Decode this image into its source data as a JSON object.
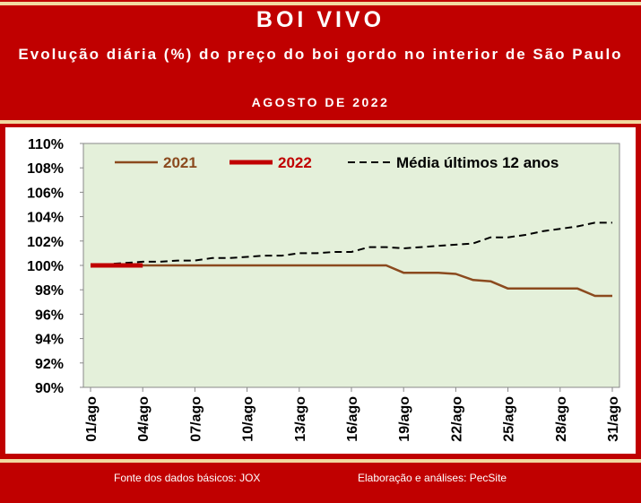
{
  "header": {
    "title": "BOI VIVO",
    "subtitle": "Evolução diária (%) do preço do boi gordo no interior de São Paulo",
    "period": "AGOSTO DE 2022"
  },
  "footer": {
    "source": "Fonte dos dados básicos: JOX",
    "credit": "Elaboração e análises: PecSite"
  },
  "colors": {
    "background": "#c00000",
    "plot_area": "#e4f0da",
    "series_2021": "#8b4a1e",
    "series_2022": "#c00000",
    "series_media": "#000000",
    "stripe": "#f2d9a0"
  },
  "chart_data": {
    "type": "line",
    "ylim": [
      90,
      110
    ],
    "y_ticks": [
      "110%",
      "108%",
      "106%",
      "104%",
      "102%",
      "100%",
      "98%",
      "96%",
      "94%",
      "92%",
      "90%"
    ],
    "y_tick_values": [
      110,
      108,
      106,
      104,
      102,
      100,
      98,
      96,
      94,
      92,
      90
    ],
    "x_tick_labels": [
      "01/ago",
      "04/ago",
      "07/ago",
      "10/ago",
      "13/ago",
      "16/ago",
      "19/ago",
      "22/ago",
      "25/ago",
      "28/ago",
      "31/ago"
    ],
    "x_tick_days": [
      1,
      4,
      7,
      10,
      13,
      16,
      19,
      22,
      25,
      28,
      31
    ],
    "xlim": [
      1,
      31
    ],
    "grid": false,
    "legend_position": "top",
    "series": [
      {
        "name": "2021",
        "style": "solid",
        "x": [
          1,
          2,
          3,
          4,
          5,
          6,
          7,
          8,
          9,
          10,
          11,
          12,
          13,
          14,
          15,
          16,
          17,
          18,
          19,
          20,
          21,
          22,
          23,
          24,
          25,
          26,
          27,
          28,
          29,
          30,
          31
        ],
        "values": [
          100,
          100,
          100,
          100,
          100,
          100,
          100,
          100,
          100,
          100,
          100,
          100,
          100,
          100,
          100,
          100,
          100,
          100,
          99.4,
          99.4,
          99.4,
          99.3,
          98.8,
          98.7,
          98.1,
          98.1,
          98.1,
          98.1,
          98.1,
          97.5,
          97.5
        ]
      },
      {
        "name": "2022",
        "style": "thick",
        "x": [
          1,
          2,
          3,
          4
        ],
        "values": [
          100,
          100,
          100,
          100
        ]
      },
      {
        "name": "Média últimos 12 anos",
        "style": "dashed",
        "x": [
          1,
          2,
          3,
          4,
          5,
          6,
          7,
          8,
          9,
          10,
          11,
          12,
          13,
          14,
          15,
          16,
          17,
          18,
          19,
          20,
          21,
          22,
          23,
          24,
          25,
          26,
          27,
          28,
          29,
          30,
          31
        ],
        "values": [
          100,
          100.1,
          100.2,
          100.3,
          100.3,
          100.4,
          100.4,
          100.6,
          100.6,
          100.7,
          100.8,
          100.8,
          101.0,
          101.0,
          101.1,
          101.1,
          101.5,
          101.5,
          101.4,
          101.5,
          101.6,
          101.7,
          101.8,
          102.3,
          102.3,
          102.5,
          102.8,
          103.0,
          103.2,
          103.5,
          103.5
        ]
      }
    ]
  }
}
